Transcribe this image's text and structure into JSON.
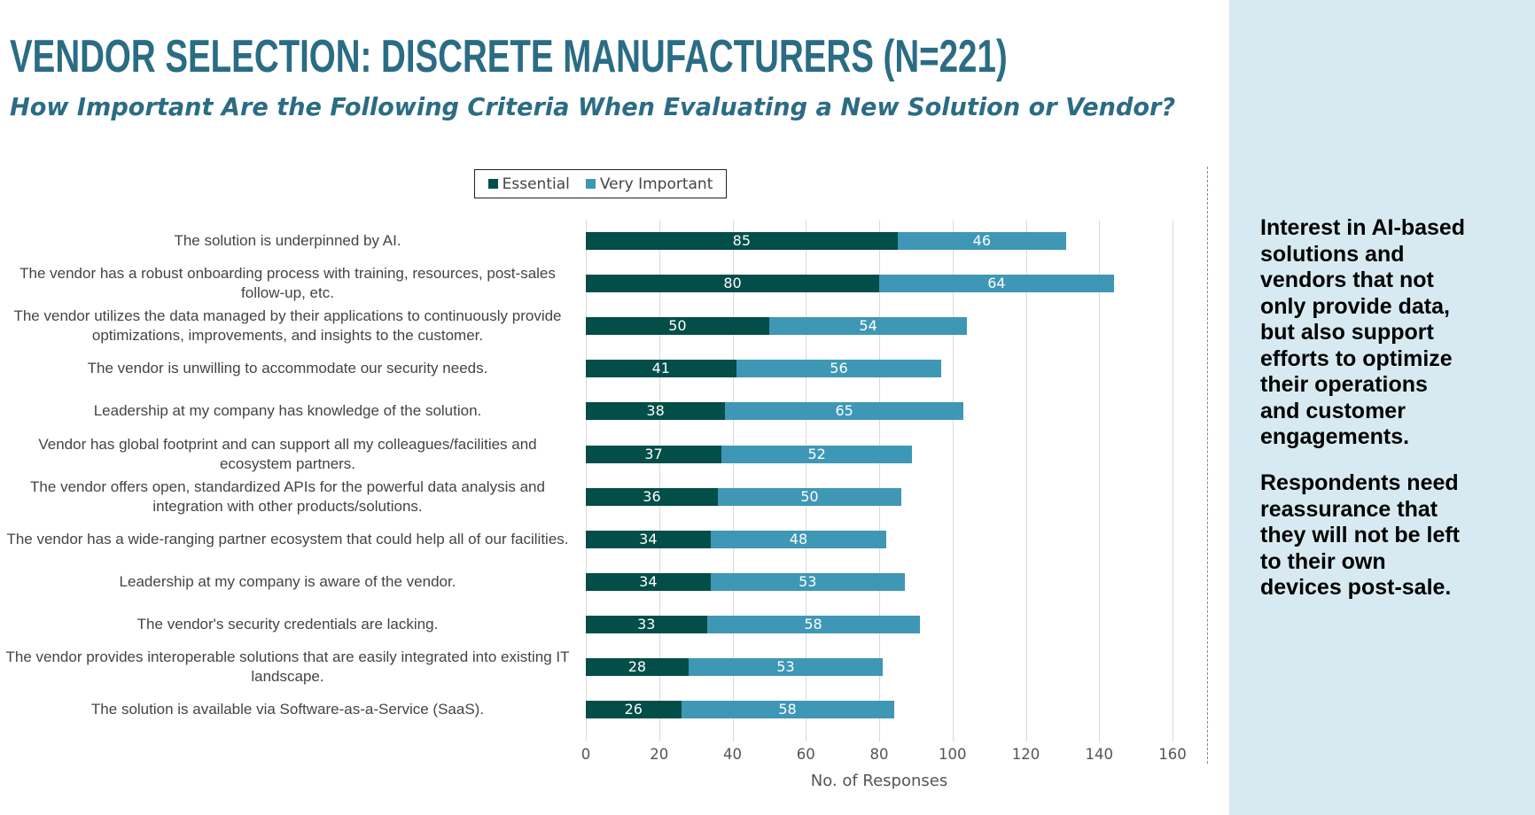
{
  "header": {
    "title": "VENDOR SELECTION: DISCRETE MANUFACTURERS (N=221)",
    "subtitle": "How Important Are the Following Criteria When Evaluating a New Solution or Vendor?"
  },
  "sidebar": {
    "paragraphs": [
      "Interest in AI-based\nsolutions and\nvendors that not\nonly provide data,\nbut also support\nefforts to optimize\ntheir operations\nand customer\nengagements.",
      "Respondents need\nreassurance that\nthey will not be left\nto their own\ndevices post-sale."
    ]
  },
  "chart_data": {
    "type": "bar",
    "orientation": "horizontal",
    "stacked": true,
    "categories": [
      "The solution is underpinned by AI.",
      "The vendor has a robust onboarding process with training, resources, post-sales follow-up, etc.",
      "The vendor utilizes the data managed by their applications to continuously provide optimizations, improvements, and insights to the customer.",
      "The vendor is unwilling to accommodate our security needs.",
      "Leadership at my company has knowledge of the solution.",
      "Vendor has global footprint and can support all my colleagues/facilities and ecosystem partners.",
      "The vendor offers open, standardized APIs for the powerful data analysis and integration with other products/solutions.",
      "The vendor has a wide-ranging partner ecosystem that could help all of our facilities.",
      "Leadership at my company is aware of the vendor.",
      "The vendor's security credentials are lacking.",
      "The vendor provides interoperable solutions that are easily integrated into existing IT landscape.",
      "The solution is available via Software-as-a-Service (SaaS)."
    ],
    "series": [
      {
        "name": "Essential",
        "color": "#034e48",
        "values": [
          85,
          80,
          50,
          41,
          38,
          37,
          36,
          34,
          34,
          33,
          28,
          26
        ]
      },
      {
        "name": "Very Important",
        "color": "#3f97b6",
        "values": [
          46,
          64,
          54,
          56,
          65,
          52,
          50,
          48,
          53,
          58,
          53,
          58
        ]
      }
    ],
    "xlabel": "No. of Responses",
    "xlim": [
      0,
      160
    ],
    "xticks": [
      "0",
      "20",
      "40",
      "60",
      "80",
      "100",
      "120",
      "140",
      "160"
    ],
    "grid": true,
    "legend_position": "top",
    "data_labels": true
  }
}
